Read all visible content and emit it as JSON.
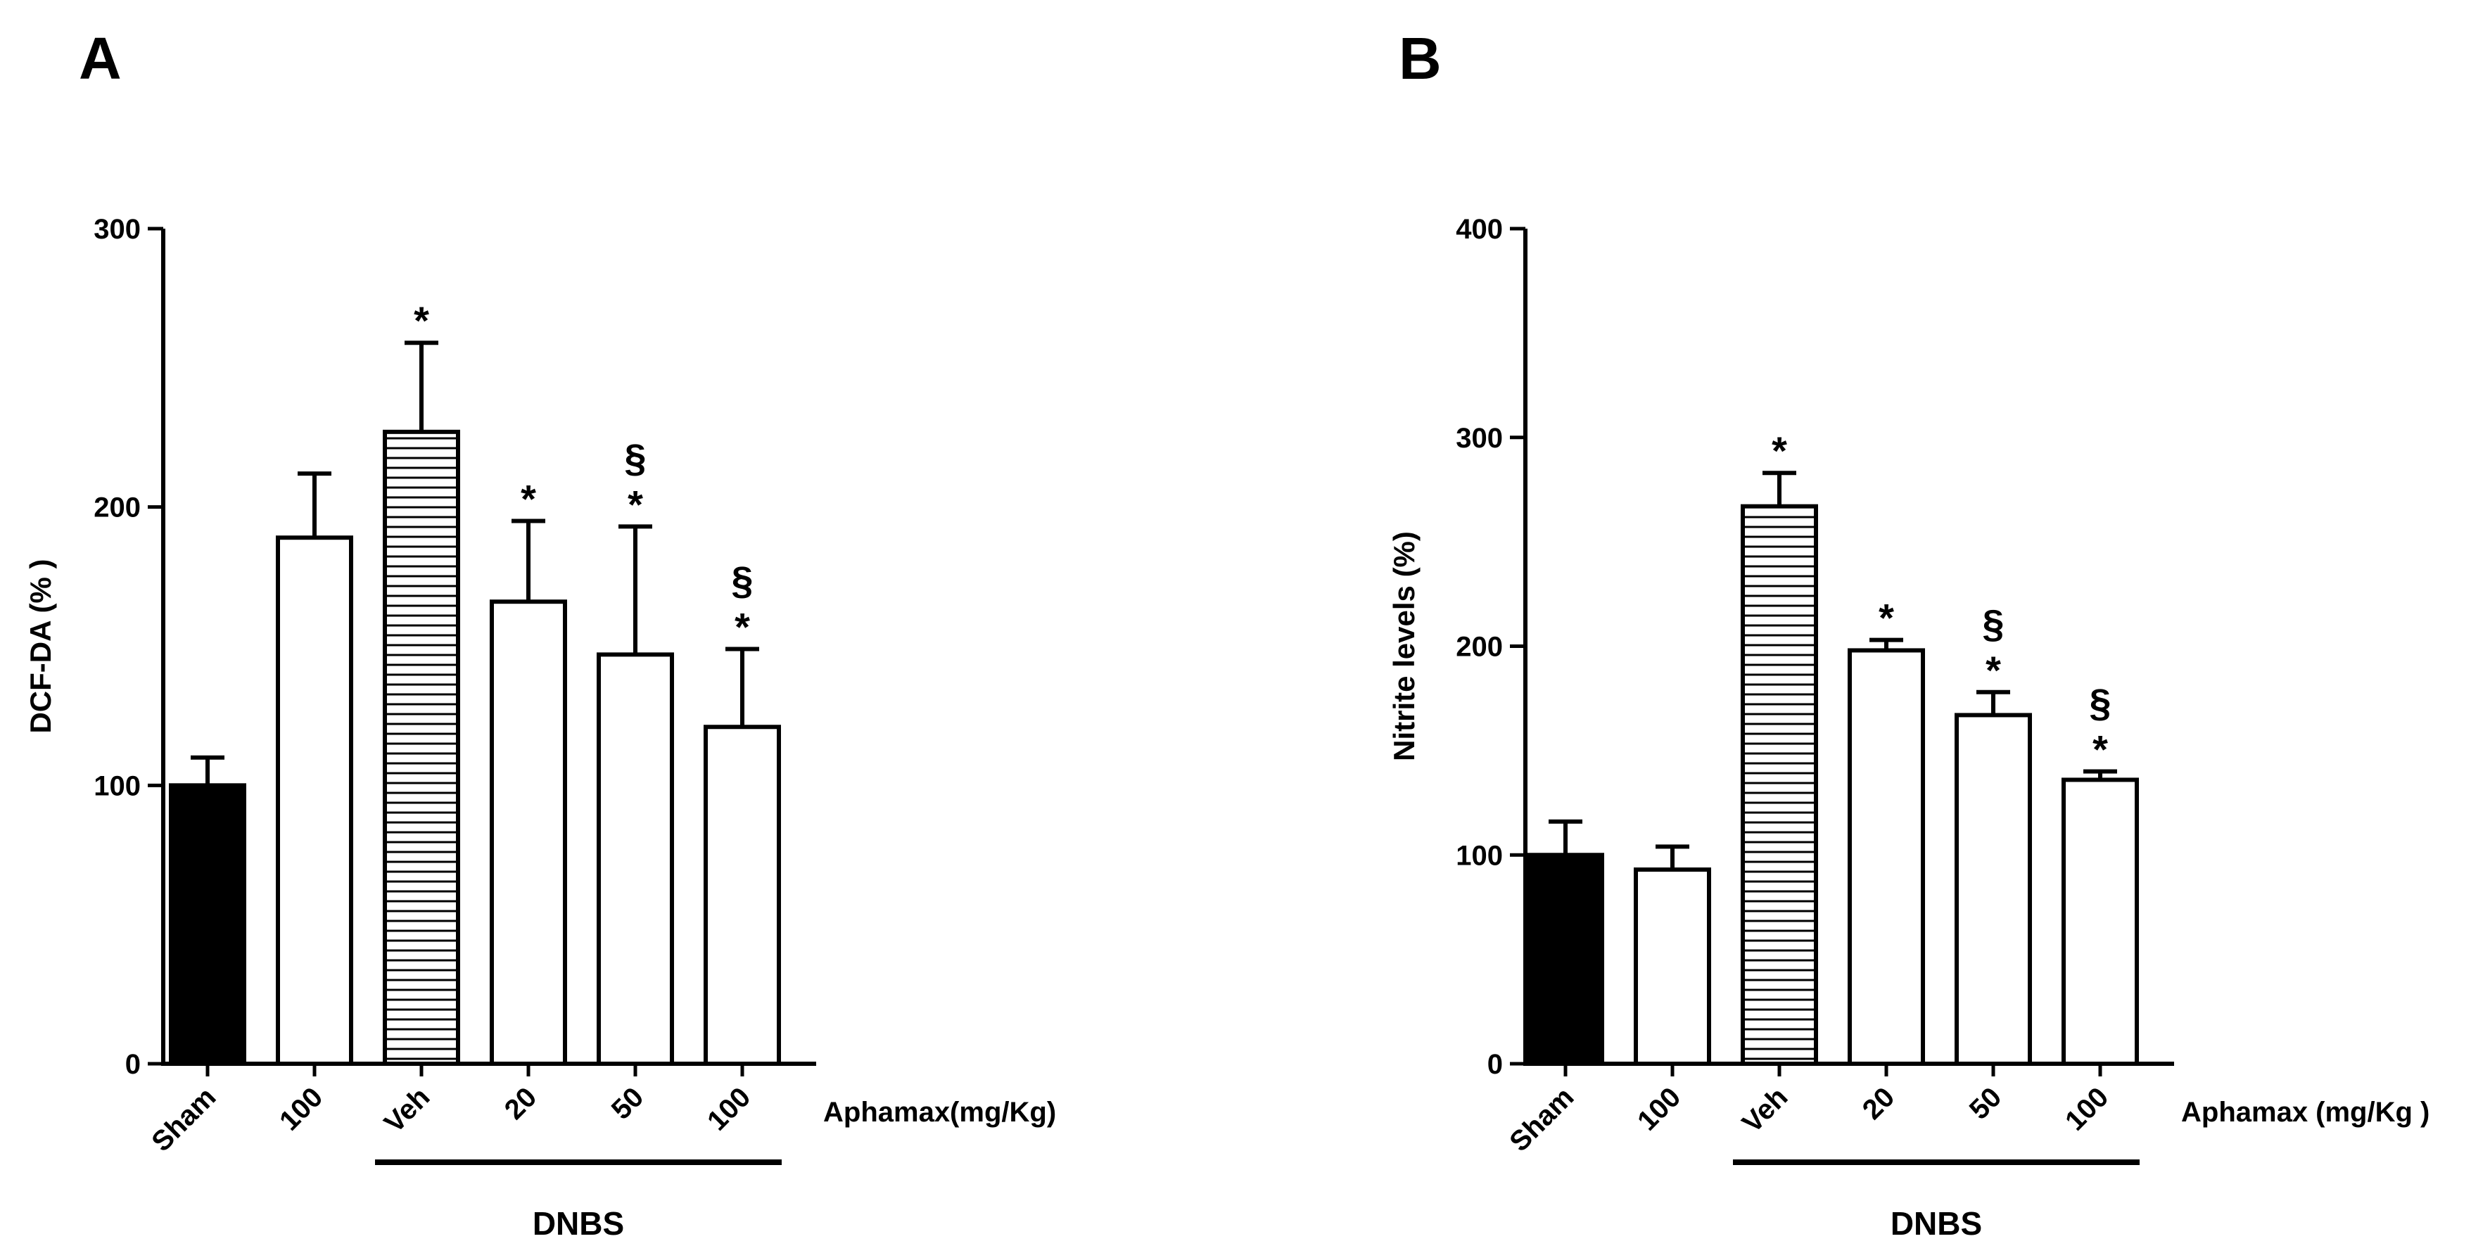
{
  "chart_data": [
    {
      "panel": "A",
      "type": "bar",
      "ylabel": "DCF-DA (% )",
      "ylim": [
        0,
        300
      ],
      "yticks": [
        0,
        100,
        200,
        300
      ],
      "categories": [
        "Sham",
        "100",
        "Veh",
        "20",
        "50",
        "100"
      ],
      "values": [
        100,
        189,
        227,
        166,
        147,
        121
      ],
      "errors": [
        10,
        23,
        32,
        29,
        46,
        28
      ],
      "fills": [
        "solid",
        "open",
        "hatched",
        "open",
        "open",
        "open"
      ],
      "annotations": [
        [],
        [],
        [
          "*"
        ],
        [
          "*"
        ],
        [
          "§",
          "*"
        ],
        [
          "§",
          "*"
        ]
      ],
      "units_label": "Aphamax(mg/Kg)",
      "group_label": "DNBS",
      "group_range": [
        2,
        5
      ]
    },
    {
      "panel": "B",
      "type": "bar",
      "ylabel": "Nitrite levels (%)",
      "ylim": [
        0,
        400
      ],
      "yticks": [
        0,
        100,
        200,
        300,
        400
      ],
      "categories": [
        "Sham",
        "100",
        "Veh",
        "20",
        "50",
        "100"
      ],
      "values": [
        100,
        93,
        267,
        198,
        167,
        136
      ],
      "errors": [
        16,
        11,
        16,
        5,
        11,
        4
      ],
      "fills": [
        "solid",
        "open",
        "hatched",
        "open",
        "open",
        "open"
      ],
      "annotations": [
        [],
        [],
        [
          "*"
        ],
        [
          "*"
        ],
        [
          "§",
          "*"
        ],
        [
          "§",
          "*"
        ]
      ],
      "units_label": "Aphamax (mg/Kg )",
      "group_label": "DNBS",
      "group_range": [
        2,
        5
      ]
    }
  ]
}
